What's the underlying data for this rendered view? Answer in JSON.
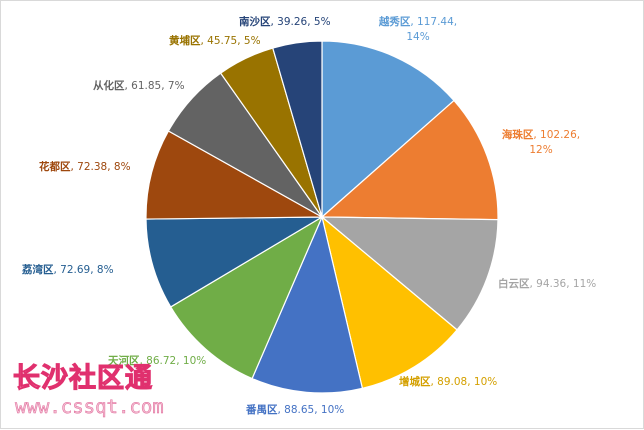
{
  "chart_data": {
    "type": "pie",
    "title": "",
    "slices": [
      {
        "name": "越秀区",
        "value": 117.44,
        "percent": "14%",
        "color": "#5b9bd5",
        "label_color": "#5b9bd5"
      },
      {
        "name": "海珠区",
        "value": 102.26,
        "percent": "12%",
        "color": "#ed7d31",
        "label_color": "#ed7d31"
      },
      {
        "name": "白云区",
        "value": 94.36,
        "percent": "11%",
        "color": "#a5a5a5",
        "label_color": "#a5a5a5"
      },
      {
        "name": "增城区",
        "value": 89.08,
        "percent": "10%",
        "color": "#ffc000",
        "label_color": "#d4a000"
      },
      {
        "name": "番禺区",
        "value": 88.65,
        "percent": "10%",
        "color": "#4472c4",
        "label_color": "#4472c4"
      },
      {
        "name": "天河区",
        "value": 86.72,
        "percent": "10%",
        "color": "#70ad47",
        "label_color": "#70ad47"
      },
      {
        "name": "荔湾区",
        "value": 72.69,
        "percent": "8%",
        "color": "#255e91",
        "label_color": "#255e91"
      },
      {
        "name": "花都区",
        "value": 72.38,
        "percent": "8%",
        "color": "#9e480e",
        "label_color": "#9e480e"
      },
      {
        "name": "从化区",
        "value": 61.85,
        "percent": "7%",
        "color": "#636363",
        "label_color": "#636363"
      },
      {
        "name": "黄埔区",
        "value": 45.75,
        "percent": "5%",
        "color": "#997300",
        "label_color": "#997300"
      },
      {
        "name": "南沙区",
        "value": 39.26,
        "percent": "5%",
        "color": "#264478",
        "label_color": "#264478"
      }
    ]
  },
  "watermark": {
    "text": "长沙社区通",
    "url": "www.cssqt.com"
  }
}
